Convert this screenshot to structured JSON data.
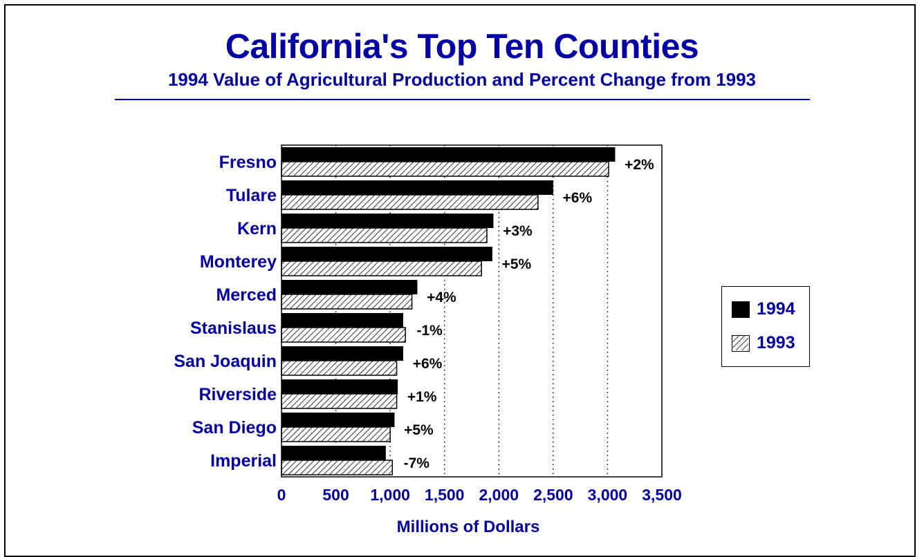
{
  "header": {
    "title": "California's Top Ten Counties",
    "subtitle": "1994 Value of Agricultural Production and Percent Change from 1993"
  },
  "legend": {
    "items": [
      "1994",
      "1993"
    ]
  },
  "colors": {
    "text": "#0000aa",
    "bar_1994": "#000000",
    "bar_1993_hatch": "#000000"
  },
  "chart_data": {
    "type": "bar",
    "orientation": "horizontal",
    "title": "California's Top Ten Counties",
    "subtitle": "1994 Value of Agricultural Production and Percent Change from 1993",
    "xlabel": "Millions of Dollars",
    "ylabel": "",
    "xlim": [
      0,
      3500
    ],
    "x_ticks": [
      "0",
      "500",
      "1,000",
      "1,500",
      "2,000",
      "2,500",
      "3,000",
      "3,500"
    ],
    "grid": "vertical dotted",
    "legend_position": "right",
    "categories": [
      "Fresno",
      "Tulare",
      "Kern",
      "Monterey",
      "Merced",
      "Stanislaus",
      "San Joaquin",
      "Riverside",
      "San Diego",
      "Imperial"
    ],
    "series": [
      {
        "name": "1994",
        "values": [
          3070,
          2500,
          1950,
          1940,
          1250,
          1120,
          1120,
          1070,
          1040,
          960
        ]
      },
      {
        "name": "1993",
        "values": [
          3010,
          2360,
          1890,
          1840,
          1200,
          1140,
          1060,
          1060,
          1000,
          1020
        ]
      }
    ],
    "annotations": [
      "+2%",
      "+6%",
      "+3%",
      "+5%",
      "+4%",
      "-1%",
      "+6%",
      "+1%",
      "+5%",
      "-7%"
    ]
  }
}
